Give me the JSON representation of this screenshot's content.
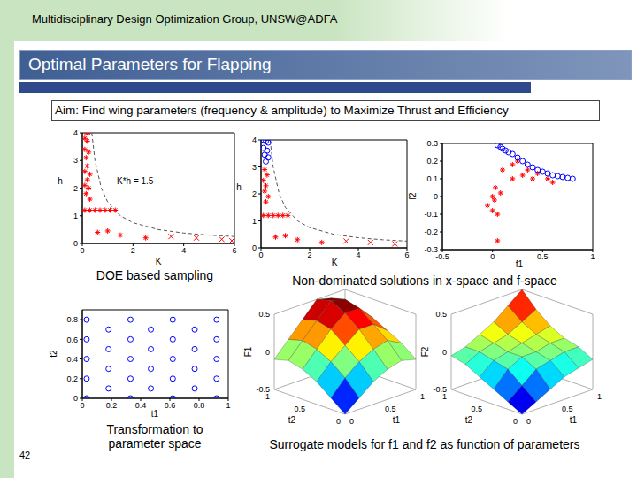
{
  "header": "Multidisciplinary Design Optimization Group, UNSW@ADFA",
  "title": "Optimal Parameters for Flapping",
  "aim": "Aim: Find wing parameters (frequency & amplitude) to Maximize Thrust and Efficiency",
  "page": "42",
  "captions": [
    "DOE based sampling",
    "Non-dominated solutions in x-space and f-space",
    "Transformation to parameter space",
    "Surrogate models for f1 and f2 as function of parameters"
  ],
  "chart_data": [
    {
      "type": "scatter",
      "xlabel": "K",
      "ylabel": "h",
      "xlim": [
        0,
        6
      ],
      "ylim": [
        0,
        4
      ],
      "xticks": [
        0,
        2,
        4,
        6
      ],
      "yticks": [
        0,
        1,
        2,
        3,
        4
      ],
      "annotations": [
        "K*h = 1.5"
      ],
      "series": [
        {
          "type": "line",
          "line_style": "dashed",
          "color": "#555555",
          "x": [
            0.375,
            0.5,
            0.75,
            1,
            1.5,
            2,
            3,
            4,
            5,
            6
          ],
          "values": [
            4,
            3,
            2,
            1.5,
            1,
            0.75,
            0.5,
            0.375,
            0.3,
            0.25
          ]
        },
        {
          "color": "#ff0000",
          "marker": "asterisk",
          "x": [
            0.15,
            0.25,
            0.1,
            0.2,
            0.1,
            0.25,
            0.15,
            0.2,
            0.1,
            0.3,
            0.2,
            0.1,
            0.25,
            0.15,
            0.3,
            0.1,
            0.3,
            0.5,
            0.7,
            0.9,
            1.1,
            1.3,
            0.6,
            1.0,
            1.5,
            2.5
          ],
          "values": [
            4,
            4,
            3.8,
            3.7,
            3.4,
            3.3,
            3.1,
            2.8,
            2.6,
            2.5,
            2.3,
            2.1,
            2.0,
            1.8,
            1.6,
            1.2,
            1.2,
            1.2,
            1.2,
            1.2,
            1.2,
            1.2,
            0.4,
            0.45,
            0.3,
            0.2
          ]
        },
        {
          "color": "#ff0000",
          "marker": "x",
          "x": [
            3.5,
            4.5,
            5.5,
            5.9
          ],
          "values": [
            0.25,
            0.2,
            0.15,
            0.1
          ]
        }
      ]
    },
    {
      "type": "scatter",
      "xlabel": "K",
      "ylabel": "h",
      "xlim": [
        0,
        6
      ],
      "ylim": [
        0,
        4
      ],
      "xticks": [
        0,
        2,
        4,
        6
      ],
      "yticks": [
        0,
        1,
        2,
        3,
        4
      ],
      "series": [
        {
          "type": "line",
          "line_style": "dashed",
          "color": "#555555",
          "x": [
            0.375,
            0.5,
            0.75,
            1,
            1.5,
            2,
            3,
            4,
            5,
            6
          ],
          "values": [
            4,
            3,
            2,
            1.5,
            1,
            0.75,
            0.5,
            0.375,
            0.3,
            0.25
          ]
        },
        {
          "color": "#ff0000",
          "marker": "asterisk",
          "x": [
            0.15,
            0.25,
            0.1,
            0.2,
            0.15,
            0.3,
            0.2,
            0.1,
            0.3,
            0.5,
            0.7,
            0.9,
            1.1,
            0.6,
            1.0,
            1.5,
            2.5
          ],
          "values": [
            2.9,
            2.7,
            2.5,
            2.3,
            2.1,
            1.9,
            1.7,
            1.2,
            1.2,
            1.2,
            1.2,
            1.2,
            1.2,
            0.4,
            0.45,
            0.3,
            0.2
          ]
        },
        {
          "color": "#ff0000",
          "marker": "x",
          "x": [
            3.5,
            4.5,
            5.5
          ],
          "values": [
            0.25,
            0.2,
            0.15
          ]
        },
        {
          "color": "#0000ff",
          "marker": "circle",
          "x": [
            0.1,
            0.2,
            0.3,
            0.1,
            0.25,
            0.15,
            0.3,
            0.2
          ],
          "values": [
            4,
            3.95,
            3.9,
            3.7,
            3.6,
            3.45,
            3.35,
            3.2
          ]
        }
      ]
    },
    {
      "type": "scatter",
      "xlabel": "f1",
      "ylabel": "f2",
      "xlim": [
        -0.5,
        1
      ],
      "ylim": [
        -0.3,
        0.3
      ],
      "xticks": [
        -0.5,
        0,
        0.5,
        1
      ],
      "yticks": [
        -0.3,
        -0.2,
        -0.1,
        0,
        0.1,
        0.2,
        0.3
      ],
      "series": [
        {
          "color": "#ff0000",
          "marker": "asterisk",
          "x": [
            0.1,
            0.2,
            0.25,
            0.3,
            0.35,
            0.2,
            0.4,
            0.45,
            0.55,
            0.6,
            0,
            0.02,
            -0.05,
            0,
            0.05,
            0.03,
            0.08,
            0.05
          ],
          "values": [
            0.15,
            0.18,
            0.2,
            0.12,
            0.15,
            0.1,
            0.1,
            0.13,
            0.1,
            0.08,
            0,
            -0.02,
            -0.05,
            -0.08,
            -0.1,
            0.05,
            0.02,
            -0.25
          ]
        },
        {
          "color": "#0000ff",
          "marker": "circle",
          "x": [
            0.05,
            0.08,
            0.1,
            0.13,
            0.16,
            0.2,
            0.25,
            0.3,
            0.35,
            0.4,
            0.45,
            0.5,
            0.55,
            0.6,
            0.65,
            0.7,
            0.75,
            0.8
          ],
          "values": [
            0.29,
            0.28,
            0.27,
            0.26,
            0.25,
            0.24,
            0.22,
            0.2,
            0.18,
            0.165,
            0.15,
            0.14,
            0.13,
            0.12,
            0.115,
            0.11,
            0.105,
            0.1
          ]
        }
      ]
    },
    {
      "type": "scatter",
      "xlabel": "t1",
      "ylabel": "t2",
      "xlim": [
        0,
        1
      ],
      "ylim": [
        0,
        0.9
      ],
      "xticks": [
        0,
        0.2,
        0.4,
        0.6,
        0.8,
        1
      ],
      "yticks": [
        0,
        0.2,
        0.4,
        0.6,
        0.8
      ],
      "series": [
        {
          "color": "#0000ff",
          "marker": "circle",
          "x": [
            0.03,
            0.33,
            0.62,
            0.92,
            0.18,
            0.47,
            0.77,
            0.03,
            0.33,
            0.62,
            0.92,
            0.18,
            0.47,
            0.77,
            0.03,
            0.33,
            0.62,
            0.92,
            0.18,
            0.47,
            0.77,
            0.03,
            0.33,
            0.62,
            0.92,
            0.18,
            0.47,
            0.77,
            0.03,
            0.33,
            0.62,
            0.92
          ],
          "values": [
            0,
            0,
            0,
            0,
            0.1,
            0.1,
            0.1,
            0.2,
            0.2,
            0.2,
            0.2,
            0.3,
            0.3,
            0.3,
            0.4,
            0.4,
            0.4,
            0.4,
            0.5,
            0.5,
            0.5,
            0.6,
            0.6,
            0.6,
            0.6,
            0.7,
            0.7,
            0.7,
            0.8,
            0.8,
            0.8,
            0.8
          ]
        }
      ]
    },
    {
      "type": "surface",
      "xlabel": "t1",
      "ylabel": "t2",
      "zlabel": "F1",
      "xlim": [
        0,
        1
      ],
      "ylim": [
        0,
        1
      ],
      "zlim": [
        -0.5,
        0.5
      ],
      "xticks": [
        0,
        0.5,
        1
      ],
      "yticks": [
        0,
        0.5,
        1
      ],
      "zticks": [
        -0.5,
        0,
        0.5
      ],
      "x": [
        0,
        0.2,
        0.4,
        0.6,
        0.8,
        1
      ],
      "y": [
        0,
        0.2,
        0.4,
        0.6,
        0.8,
        1
      ],
      "z": [
        [
          -0.5,
          -0.35,
          -0.2,
          -0.1,
          -0.05,
          -0.1
        ],
        [
          -0.35,
          -0.15,
          0.0,
          0.1,
          0.15,
          0.05
        ],
        [
          -0.2,
          0.0,
          0.15,
          0.3,
          0.3,
          0.15
        ],
        [
          -0.1,
          0.1,
          0.3,
          0.45,
          0.45,
          0.25
        ],
        [
          -0.05,
          0.15,
          0.35,
          0.55,
          0.5,
          0.3
        ],
        [
          -0.1,
          0.1,
          0.3,
          0.5,
          0.45,
          0.2
        ]
      ]
    },
    {
      "type": "surface",
      "xlabel": "t1",
      "ylabel": "t2",
      "zlabel": "F2",
      "xlim": [
        0,
        1
      ],
      "ylim": [
        0,
        1
      ],
      "zlim": [
        -0.5,
        0.5
      ],
      "xticks": [
        0,
        0.5,
        1
      ],
      "yticks": [
        0,
        0.5,
        1
      ],
      "zticks": [
        -0.5,
        0,
        0.5
      ],
      "x": [
        0,
        0.2,
        0.4,
        0.6,
        0.8,
        1
      ],
      "y": [
        0,
        0.2,
        0.4,
        0.6,
        0.8,
        1
      ],
      "z": [
        [
          -0.5,
          -0.4,
          -0.3,
          -0.2,
          -0.15,
          -0.1
        ],
        [
          -0.4,
          -0.25,
          -0.1,
          -0.05,
          0.0,
          0.0
        ],
        [
          -0.3,
          -0.1,
          0.0,
          0.0,
          0.05,
          0.05
        ],
        [
          -0.2,
          -0.05,
          0.0,
          0.05,
          0.1,
          0.15
        ],
        [
          -0.1,
          0.0,
          0.05,
          0.1,
          0.2,
          0.3
        ],
        [
          -0.05,
          0.0,
          0.1,
          0.2,
          0.35,
          0.5
        ]
      ]
    }
  ]
}
